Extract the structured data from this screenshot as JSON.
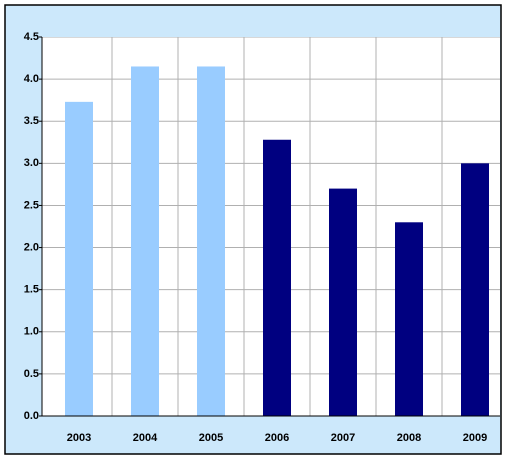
{
  "chart_data": {
    "type": "bar",
    "categories": [
      "2003",
      "2004",
      "2005",
      "2006",
      "2007",
      "2008",
      "2009"
    ],
    "values": [
      3.73,
      4.15,
      4.15,
      3.28,
      2.7,
      2.3,
      3.0
    ],
    "colors": [
      "#99ccff",
      "#99ccff",
      "#99ccff",
      "#000080",
      "#000080",
      "#000080",
      "#000080"
    ],
    "ylim": [
      0,
      4.5
    ],
    "yticks": [
      {
        "value": 0,
        "label": "0.0"
      },
      0.5,
      {
        "value": 1,
        "label": "1.0"
      },
      1.5,
      {
        "value": 2,
        "label": "2.0"
      },
      2.5,
      {
        "value": 3,
        "label": "3.0"
      },
      3.5,
      {
        "value": 4,
        "label": "4.0"
      },
      4.5
    ],
    "grid": true
  }
}
